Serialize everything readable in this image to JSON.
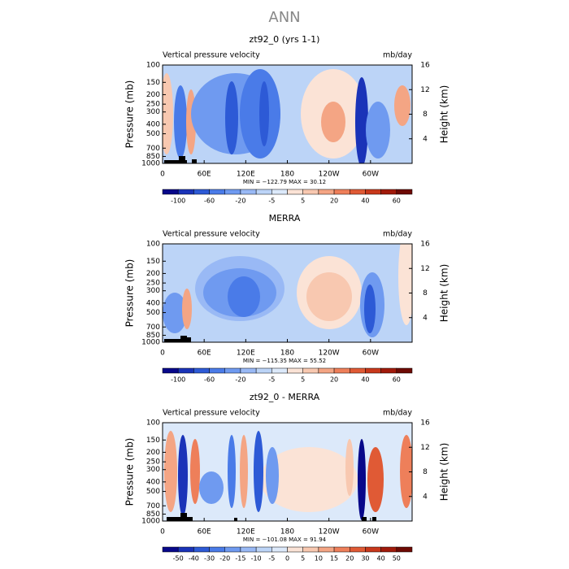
{
  "title": "ANN",
  "chart_data": [
    {
      "type": "contour",
      "title": "zt92_0 (yrs 1-1)",
      "subtitle": "Vertical pressure velocity",
      "units": "mb/day",
      "ylabel": "Pressure (mb)",
      "y2label": "Height (km)",
      "log_y": true,
      "y_inverted": true,
      "ylim": [
        100,
        1000
      ],
      "yticks": [
        100,
        150,
        200,
        250,
        300,
        400,
        500,
        700,
        850,
        1000
      ],
      "y2lim": [
        0,
        16
      ],
      "y2ticks": [
        4,
        8,
        12,
        16
      ],
      "xlim": [
        0,
        360
      ],
      "xticks": [
        0,
        {
          "value": 60,
          "label": "60E"
        },
        {
          "value": 120,
          "label": "120E"
        },
        180,
        {
          "value": 240,
          "label": "120W"
        },
        {
          "value": 300,
          "label": "60W"
        }
      ],
      "stats": "MIN = −122.79   MAX =   30.12",
      "colorbar": {
        "labels": [
          -100,
          -60,
          -20,
          -5,
          5,
          20,
          40,
          60
        ],
        "label_step": 2,
        "colors": [
          "#08088a",
          "#1a33b8",
          "#2d5ad6",
          "#4a7be8",
          "#6f9af0",
          "#99b9f5",
          "#bcd4f7",
          "#dce9fa",
          "#fbe3d6",
          "#f8c8b0",
          "#f4a584",
          "#ee7f5a",
          "#e05a35",
          "#c8381b",
          "#a11a0b",
          "#6e0a04"
        ]
      }
    },
    {
      "type": "contour",
      "title": "MERRA",
      "subtitle": "Vertical pressure velocity",
      "units": "mb/day",
      "ylabel": "Pressure (mb)",
      "y2label": "Height (km)",
      "log_y": true,
      "y_inverted": true,
      "ylim": [
        100,
        1000
      ],
      "yticks": [
        100,
        150,
        200,
        250,
        300,
        400,
        500,
        700,
        850,
        1000
      ],
      "y2lim": [
        0,
        16
      ],
      "y2ticks": [
        4,
        8,
        12,
        16
      ],
      "xlim": [
        0,
        360
      ],
      "xticks": [
        0,
        {
          "value": 60,
          "label": "60E"
        },
        {
          "value": 120,
          "label": "120E"
        },
        180,
        {
          "value": 240,
          "label": "120W"
        },
        {
          "value": 300,
          "label": "60W"
        }
      ],
      "stats": "MIN = −115.35   MAX =   55.52",
      "colorbar": {
        "labels": [
          -100,
          -60,
          -20,
          -5,
          5,
          20,
          40,
          60
        ],
        "label_step": 2,
        "colors": [
          "#08088a",
          "#1a33b8",
          "#2d5ad6",
          "#4a7be8",
          "#6f9af0",
          "#99b9f5",
          "#bcd4f7",
          "#dce9fa",
          "#fbe3d6",
          "#f8c8b0",
          "#f4a584",
          "#ee7f5a",
          "#e05a35",
          "#c8381b",
          "#a11a0b",
          "#6e0a04"
        ]
      }
    },
    {
      "type": "contour",
      "title": "zt92_0 - MERRA",
      "subtitle": "Vertical pressure velocity",
      "units": "mb/day",
      "ylabel": "Pressure (mb)",
      "y2label": "Height (km)",
      "log_y": true,
      "y_inverted": true,
      "ylim": [
        100,
        1000
      ],
      "yticks": [
        100,
        150,
        200,
        250,
        300,
        400,
        500,
        700,
        850,
        1000
      ],
      "y2lim": [
        0,
        16
      ],
      "y2ticks": [
        4,
        8,
        12,
        16
      ],
      "xlim": [
        0,
        360
      ],
      "xticks": [
        0,
        {
          "value": 60,
          "label": "60E"
        },
        {
          "value": 120,
          "label": "120E"
        },
        180,
        {
          "value": 240,
          "label": "120W"
        },
        {
          "value": 300,
          "label": "60W"
        }
      ],
      "stats": "MIN = −101.08   MAX =   91.94",
      "colorbar": {
        "labels": [
          -50,
          -40,
          -30,
          -20,
          -15,
          -10,
          -5,
          0,
          5,
          10,
          15,
          20,
          30,
          40,
          50
        ],
        "label_step": 1,
        "colors": [
          "#08088a",
          "#1a33b8",
          "#2d5ad6",
          "#4a7be8",
          "#6f9af0",
          "#99b9f5",
          "#bcd4f7",
          "#dce9fa",
          "#fbe3d6",
          "#f8c8b0",
          "#f4a584",
          "#ee7f5a",
          "#e05a35",
          "#c8381b",
          "#a11a0b",
          "#6e0a04"
        ]
      }
    }
  ]
}
